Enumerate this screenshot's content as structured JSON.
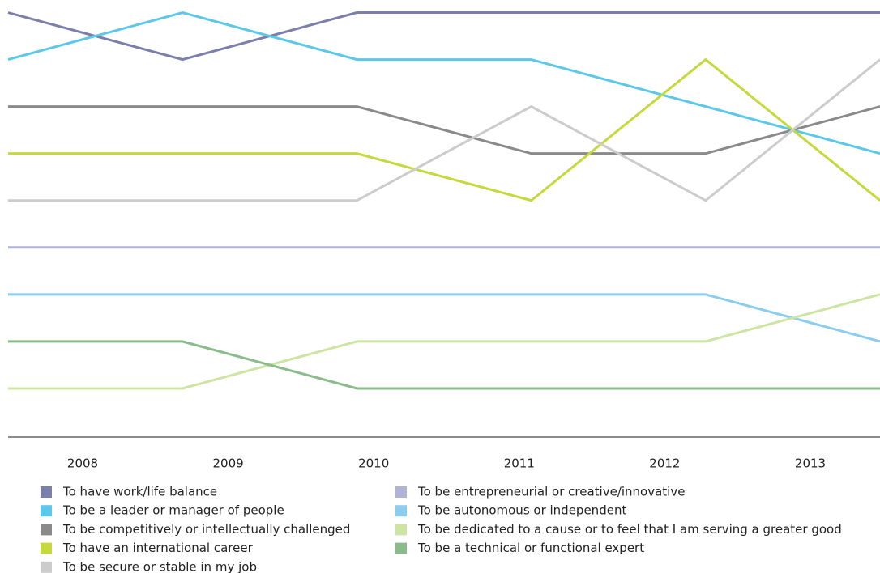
{
  "chart_data": {
    "type": "line",
    "categories": [
      "2008",
      "2009",
      "2010",
      "2011",
      "2012",
      "2013"
    ],
    "ylim": [
      10,
      0.75
    ],
    "series": [
      {
        "name": "To have work/life balance",
        "color": "#7b7fab",
        "values": [
          1,
          2,
          1,
          1,
          1,
          1
        ]
      },
      {
        "name": "To be a leader or manager of people",
        "color": "#5bc8ea",
        "values": [
          2,
          1,
          2,
          2,
          3,
          4
        ]
      },
      {
        "name": "To be competitively or intellectually challenged",
        "color": "#8a8a8a",
        "values": [
          3,
          3,
          3,
          4,
          4,
          3
        ]
      },
      {
        "name": "To have an international career",
        "color": "#c5d93c",
        "values": [
          4,
          4,
          4,
          5,
          2,
          5
        ]
      },
      {
        "name": "To be secure or stable in my job",
        "color": "#cccccc",
        "values": [
          5,
          5,
          5,
          3,
          5,
          2
        ]
      },
      {
        "name": "To be entrepreneurial or creative/innovative",
        "color": "#b1b4d4",
        "values": [
          6,
          6,
          6,
          6,
          6,
          6
        ]
      },
      {
        "name": "To be autonomous or independent",
        "color": "#8acdef",
        "values": [
          7,
          7,
          7,
          7,
          7,
          8
        ]
      },
      {
        "name": "To be dedicated to a cause or to feel that I am serving a greater good",
        "color": "#cde4a2",
        "values": [
          9,
          9,
          8,
          8,
          8,
          7
        ]
      },
      {
        "name": "To be a technical or functional expert",
        "color": "#8abb8a",
        "values": [
          8,
          8,
          9,
          9,
          9,
          9
        ]
      }
    ]
  }
}
